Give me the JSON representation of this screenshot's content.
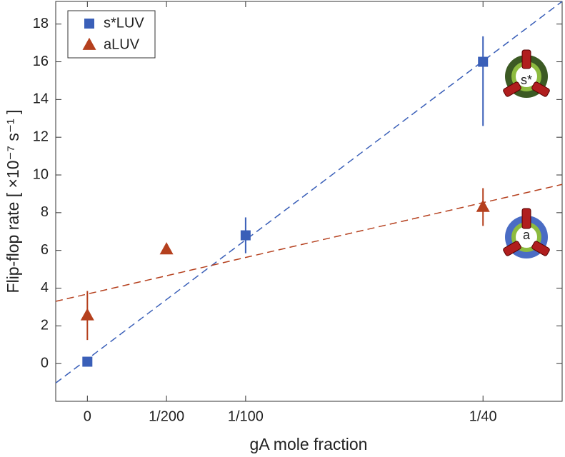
{
  "chart_data": {
    "type": "scatter",
    "xlabel": "gA mole fraction",
    "ylabel": "Flip-flop rate [ ×10⁻⁷ s⁻¹ ]",
    "xlim": [
      -0.002,
      0.03
    ],
    "ylim": [
      -2,
      19.2
    ],
    "xticks": [
      0,
      {
        "value": 0.005,
        "label": "1/200"
      },
      {
        "value": 0.01,
        "label": "1/100"
      },
      {
        "value": 0.025,
        "label": "1/40"
      }
    ],
    "yticks": [
      0,
      2,
      4,
      6,
      8,
      10,
      12,
      14,
      16,
      18
    ],
    "legend": "upper left",
    "series": [
      {
        "name": "s*LUV",
        "color": "#3a5fb8",
        "marker": "square",
        "x": [
          0,
          0.01,
          0.025
        ],
        "values": [
          0.1,
          6.8,
          16
        ],
        "error_minus": [
          0,
          0.95,
          3.4
        ],
        "error_plus": [
          0,
          0.95,
          1.35
        ]
      },
      {
        "name": "aLUV",
        "color": "#b5401e",
        "marker": "triangle",
        "x": [
          0,
          0.005,
          0.025
        ],
        "values": [
          2.55,
          6.05,
          8.3
        ],
        "error_minus": [
          1.3,
          0.2,
          1.0
        ],
        "error_plus": [
          1.3,
          0.2,
          1.0
        ]
      }
    ],
    "fits": [
      {
        "color": "#3a5fb8",
        "x": [
          -0.002,
          0.03
        ],
        "values": [
          -1.03,
          19.2
        ]
      },
      {
        "color": "#b5401e",
        "x": [
          -0.002,
          0.03
        ],
        "values": [
          3.3,
          9.5
        ]
      }
    ],
    "annotations": [
      "s*",
      "a"
    ]
  }
}
